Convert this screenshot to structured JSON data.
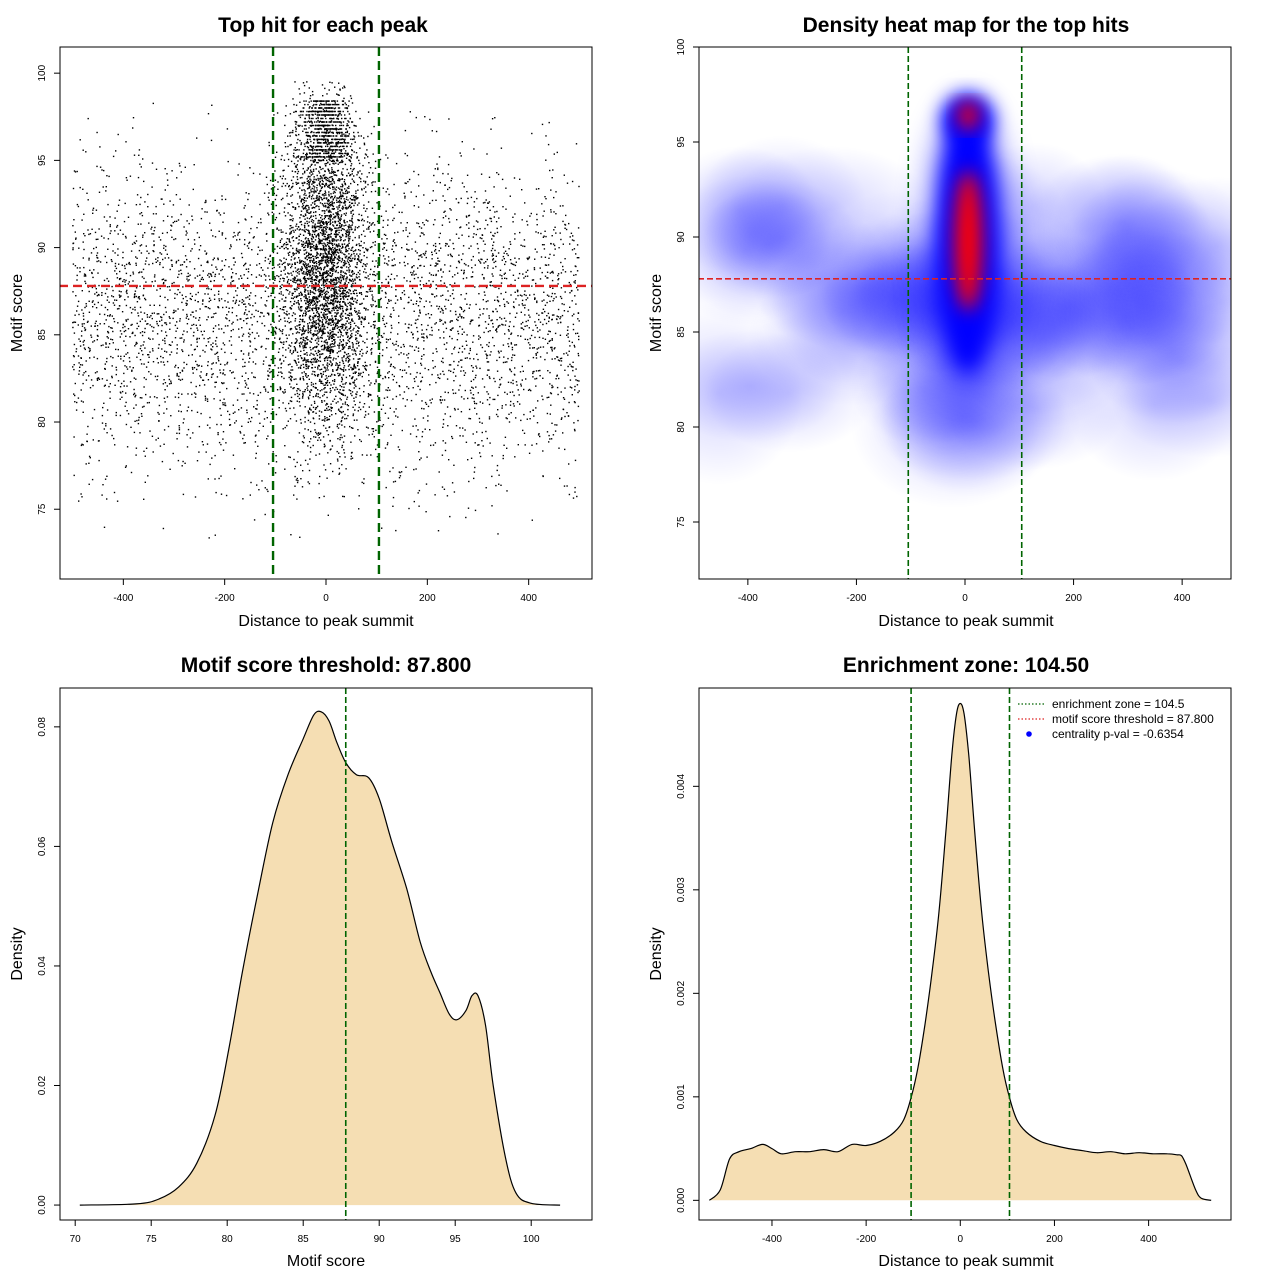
{
  "colors": {
    "threshold": "#dd2222",
    "zone": "#006400",
    "fill": "#f5deb3",
    "point": "#000000",
    "heat_low": "#ffffff",
    "heat_mid": "#0000ff",
    "heat_high": "#ff0000",
    "legend_dot": "#0000ff"
  },
  "chart_data": [
    {
      "type": "scatter",
      "title": "Top hit for each peak",
      "xlabel": "Distance to peak summit",
      "ylabel": "Motif score",
      "xlim": [
        -525,
        525
      ],
      "ylim": [
        71,
        101.5
      ],
      "xticks": [
        -400,
        -200,
        0,
        200,
        400
      ],
      "yticks": [
        75,
        80,
        85,
        90,
        95,
        100
      ],
      "hlines": [
        87.8
      ],
      "vlines": [
        -104.5,
        104.5
      ],
      "point_distribution": {
        "x_range": [
          -500,
          500
        ],
        "background_score_mean": 86,
        "background_score_sd": 4.5,
        "central_score_mean": 89,
        "central_score_sd": 4.5,
        "central_x_sd": 40
      }
    },
    {
      "type": "heatmap",
      "title": "Density heat map for the top hits",
      "xlabel": "Distance to peak summit",
      "ylabel": "Motif score",
      "xlim": [
        -490,
        490
      ],
      "ylim": [
        72,
        100
      ],
      "xticks": [
        -400,
        -200,
        0,
        200,
        400
      ],
      "yticks": [
        75,
        80,
        85,
        90,
        95,
        100
      ],
      "hlines": [
        87.8
      ],
      "vlines": [
        -104.5,
        104.5
      ]
    },
    {
      "type": "area",
      "title": "Motif score threshold: 87.800",
      "xlabel": "Motif score",
      "ylabel": "Density",
      "xlim": [
        69,
        104
      ],
      "ylim": [
        -0.0025,
        0.0865
      ],
      "xticks": [
        70,
        75,
        80,
        85,
        90,
        95,
        100
      ],
      "yticks": [
        0.0,
        0.02,
        0.04,
        0.06,
        0.08
      ],
      "ytick_labels": [
        "0.00",
        "0.02",
        "0.04",
        "0.06",
        "0.08"
      ],
      "vlines": [
        87.8
      ],
      "x": [
        70.3,
        74,
        75.5,
        76.8,
        78,
        79.2,
        80.1,
        81,
        82,
        83,
        84,
        85,
        85.7,
        86.2,
        86.7,
        87.2,
        87.8,
        88.5,
        89.3,
        90,
        90.8,
        91.8,
        92.7,
        93.4,
        94,
        94.6,
        95.1,
        95.7,
        96.1,
        96.5,
        97,
        97.5,
        98.3,
        99,
        100,
        101.9
      ],
      "y": [
        0.0,
        0.0002,
        0.001,
        0.003,
        0.007,
        0.015,
        0.026,
        0.039,
        0.052,
        0.064,
        0.072,
        0.078,
        0.082,
        0.0825,
        0.081,
        0.0775,
        0.074,
        0.072,
        0.0715,
        0.068,
        0.061,
        0.053,
        0.044,
        0.039,
        0.0355,
        0.032,
        0.031,
        0.0325,
        0.035,
        0.035,
        0.03,
        0.02,
        0.008,
        0.002,
        0.0003,
        0.0
      ]
    },
    {
      "type": "area",
      "title": "Enrichment zone: 104.50",
      "xlabel": "Distance to peak summit",
      "ylabel": "Density",
      "xlim": [
        -555,
        575
      ],
      "ylim": [
        -0.00019,
        0.00495
      ],
      "xticks": [
        -400,
        -200,
        0,
        200,
        400
      ],
      "yticks": [
        0.0,
        0.001,
        0.002,
        0.003,
        0.004
      ],
      "ytick_labels": [
        "0.000",
        "0.001",
        "0.002",
        "0.003",
        "0.004"
      ],
      "vlines": [
        -104.5,
        104.5
      ],
      "x": [
        -533,
        -510,
        -490,
        -470,
        -445,
        -420,
        -400,
        -380,
        -350,
        -320,
        -290,
        -260,
        -230,
        -200,
        -170,
        -140,
        -120,
        -104,
        -90,
        -75,
        -60,
        -45,
        -30,
        -18,
        -8,
        0,
        8,
        18,
        30,
        45,
        60,
        75,
        90,
        104,
        120,
        140,
        170,
        200,
        230,
        260,
        290,
        320,
        350,
        380,
        410,
        440,
        460,
        470,
        480,
        500,
        512,
        533
      ],
      "y": [
        0,
        0.0001,
        0.0004,
        0.00047,
        0.0005,
        0.00054,
        0.0005,
        0.00045,
        0.00047,
        0.00047,
        0.00049,
        0.00047,
        0.00054,
        0.00053,
        0.00057,
        0.00066,
        0.00078,
        0.001,
        0.00128,
        0.0017,
        0.0022,
        0.0028,
        0.0036,
        0.0043,
        0.0047,
        0.0048,
        0.0047,
        0.0043,
        0.0036,
        0.0028,
        0.0022,
        0.0017,
        0.00128,
        0.001,
        0.00078,
        0.00066,
        0.00057,
        0.00053,
        0.0005,
        0.00048,
        0.00046,
        0.00047,
        0.00045,
        0.00046,
        0.00045,
        0.00045,
        0.00044,
        0.00043,
        0.00034,
        0.0001,
        2e-05,
        0
      ],
      "legend": {
        "placement": "top-right",
        "entries": [
          {
            "label": "enrichment zone = 104.5",
            "style": "dotted-line",
            "color": "#006400"
          },
          {
            "label": "motif score threshold = 87.800",
            "style": "dotted-line",
            "color": "#dd2222"
          },
          {
            "label": "centrality p-val = -0.6354",
            "style": "dot",
            "color": "#0000ff"
          }
        ]
      }
    }
  ]
}
